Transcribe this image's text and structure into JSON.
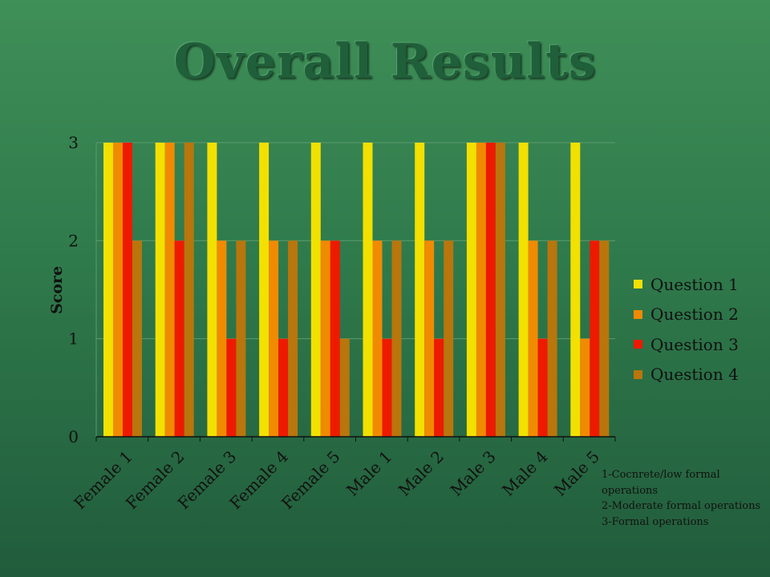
{
  "title": "Overall Results",
  "chart_data": {
    "type": "bar",
    "categories": [
      "Female 1",
      "Female 2",
      "Female 3",
      "Female 4",
      "Female 5",
      "Male 1",
      "Male 2",
      "Male 3",
      "Male 4",
      "Male 5"
    ],
    "series": [
      {
        "name": "Question 1",
        "color": "#f2e000",
        "values": [
          3,
          3,
          3,
          3,
          3,
          3,
          3,
          3,
          3,
          3
        ]
      },
      {
        "name": "Question 2",
        "color": "#f08a00",
        "values": [
          3,
          3,
          2,
          2,
          2,
          2,
          2,
          3,
          2,
          1
        ]
      },
      {
        "name": "Question 3",
        "color": "#ee1a00",
        "values": [
          3,
          2,
          1,
          1,
          2,
          1,
          1,
          3,
          1,
          2
        ]
      },
      {
        "name": "Question 4",
        "color": "#b8760c",
        "values": [
          2,
          3,
          2,
          2,
          1,
          2,
          2,
          3,
          2,
          2
        ]
      }
    ],
    "ylabel": "Score",
    "yticks": [
      "0",
      "1",
      "2",
      "3"
    ],
    "ylim": [
      0,
      3
    ],
    "grid": true,
    "legend_position": "right"
  },
  "note": {
    "lines": [
      "1-Cocnrete/low formal operations",
      "2-Moderate formal operations",
      "3-Formal operations"
    ]
  }
}
